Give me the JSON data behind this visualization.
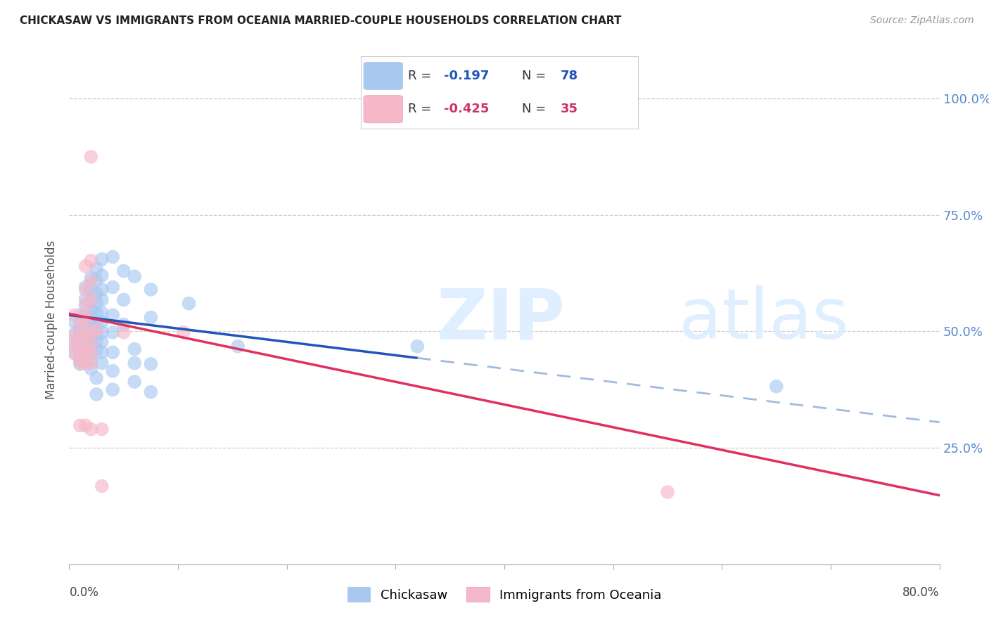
{
  "title": "CHICKASAW VS IMMIGRANTS FROM OCEANIA MARRIED-COUPLE HOUSEHOLDS CORRELATION CHART",
  "source": "Source: ZipAtlas.com",
  "ylabel": "Married-couple Households",
  "xlim": [
    0.0,
    0.8
  ],
  "ylim": [
    0.0,
    1.05
  ],
  "y_tick_vals": [
    0.25,
    0.5,
    0.75,
    1.0
  ],
  "y_tick_labels": [
    "25.0%",
    "50.0%",
    "75.0%",
    "100.0%"
  ],
  "x_tick_vals": [
    0.0,
    0.1,
    0.2,
    0.3,
    0.4,
    0.5,
    0.6,
    0.7,
    0.8
  ],
  "x_edge_labels": {
    "0": "0.0%",
    "8": "80.0%"
  },
  "r_blue": -0.197,
  "n_blue": 78,
  "r_pink": -0.425,
  "n_pink": 35,
  "blue_color": "#a8c8f0",
  "pink_color": "#f5b8c8",
  "blue_line_color": "#2255bb",
  "pink_line_color": "#e03060",
  "blue_dash_color": "#a0bbdd",
  "legend_label_blue": "Chickasaw",
  "legend_label_pink": "Immigrants from Oceania",
  "blue_scatter": [
    [
      0.005,
      0.52
    ],
    [
      0.005,
      0.495
    ],
    [
      0.005,
      0.475
    ],
    [
      0.005,
      0.455
    ],
    [
      0.01,
      0.535
    ],
    [
      0.01,
      0.51
    ],
    [
      0.01,
      0.495
    ],
    [
      0.01,
      0.475
    ],
    [
      0.01,
      0.46
    ],
    [
      0.01,
      0.45
    ],
    [
      0.01,
      0.44
    ],
    [
      0.01,
      0.43
    ],
    [
      0.015,
      0.595
    ],
    [
      0.015,
      0.57
    ],
    [
      0.015,
      0.555
    ],
    [
      0.015,
      0.535
    ],
    [
      0.015,
      0.52
    ],
    [
      0.015,
      0.505
    ],
    [
      0.015,
      0.49
    ],
    [
      0.015,
      0.475
    ],
    [
      0.015,
      0.46
    ],
    [
      0.015,
      0.45
    ],
    [
      0.015,
      0.44
    ],
    [
      0.02,
      0.615
    ],
    [
      0.02,
      0.59
    ],
    [
      0.02,
      0.565
    ],
    [
      0.02,
      0.548
    ],
    [
      0.02,
      0.53
    ],
    [
      0.02,
      0.515
    ],
    [
      0.02,
      0.5
    ],
    [
      0.02,
      0.485
    ],
    [
      0.02,
      0.468
    ],
    [
      0.02,
      0.45
    ],
    [
      0.02,
      0.438
    ],
    [
      0.02,
      0.42
    ],
    [
      0.025,
      0.635
    ],
    [
      0.025,
      0.61
    ],
    [
      0.025,
      0.582
    ],
    [
      0.025,
      0.562
    ],
    [
      0.025,
      0.54
    ],
    [
      0.025,
      0.52
    ],
    [
      0.025,
      0.5
    ],
    [
      0.025,
      0.48
    ],
    [
      0.025,
      0.46
    ],
    [
      0.025,
      0.4
    ],
    [
      0.025,
      0.365
    ],
    [
      0.03,
      0.655
    ],
    [
      0.03,
      0.62
    ],
    [
      0.03,
      0.59
    ],
    [
      0.03,
      0.568
    ],
    [
      0.03,
      0.54
    ],
    [
      0.03,
      0.52
    ],
    [
      0.03,
      0.498
    ],
    [
      0.03,
      0.478
    ],
    [
      0.03,
      0.455
    ],
    [
      0.03,
      0.432
    ],
    [
      0.04,
      0.66
    ],
    [
      0.04,
      0.595
    ],
    [
      0.04,
      0.535
    ],
    [
      0.04,
      0.498
    ],
    [
      0.04,
      0.455
    ],
    [
      0.04,
      0.415
    ],
    [
      0.04,
      0.375
    ],
    [
      0.05,
      0.63
    ],
    [
      0.05,
      0.568
    ],
    [
      0.05,
      0.515
    ],
    [
      0.06,
      0.618
    ],
    [
      0.06,
      0.462
    ],
    [
      0.06,
      0.432
    ],
    [
      0.06,
      0.392
    ],
    [
      0.075,
      0.59
    ],
    [
      0.075,
      0.53
    ],
    [
      0.075,
      0.43
    ],
    [
      0.075,
      0.37
    ],
    [
      0.11,
      0.56
    ],
    [
      0.155,
      0.468
    ],
    [
      0.32,
      0.468
    ],
    [
      0.65,
      0.382
    ]
  ],
  "pink_scatter": [
    [
      0.005,
      0.535
    ],
    [
      0.005,
      0.49
    ],
    [
      0.005,
      0.47
    ],
    [
      0.005,
      0.452
    ],
    [
      0.01,
      0.515
    ],
    [
      0.01,
      0.49
    ],
    [
      0.01,
      0.462
    ],
    [
      0.01,
      0.442
    ],
    [
      0.01,
      0.432
    ],
    [
      0.01,
      0.298
    ],
    [
      0.015,
      0.64
    ],
    [
      0.015,
      0.59
    ],
    [
      0.015,
      0.558
    ],
    [
      0.015,
      0.535
    ],
    [
      0.015,
      0.515
    ],
    [
      0.015,
      0.488
    ],
    [
      0.015,
      0.465
    ],
    [
      0.015,
      0.452
    ],
    [
      0.015,
      0.432
    ],
    [
      0.015,
      0.298
    ],
    [
      0.02,
      0.652
    ],
    [
      0.02,
      0.608
    ],
    [
      0.02,
      0.568
    ],
    [
      0.02,
      0.495
    ],
    [
      0.02,
      0.472
    ],
    [
      0.02,
      0.452
    ],
    [
      0.02,
      0.432
    ],
    [
      0.02,
      0.29
    ],
    [
      0.025,
      0.502
    ],
    [
      0.03,
      0.29
    ],
    [
      0.05,
      0.498
    ],
    [
      0.105,
      0.498
    ],
    [
      0.55,
      0.155
    ],
    [
      0.02,
      0.875
    ],
    [
      0.03,
      0.168
    ]
  ],
  "blue_line_solid_end": 0.32,
  "blue_line_start_y": 0.535,
  "blue_line_end_y": 0.305,
  "pink_line_start_y": 0.538,
  "pink_line_end_y": 0.148
}
